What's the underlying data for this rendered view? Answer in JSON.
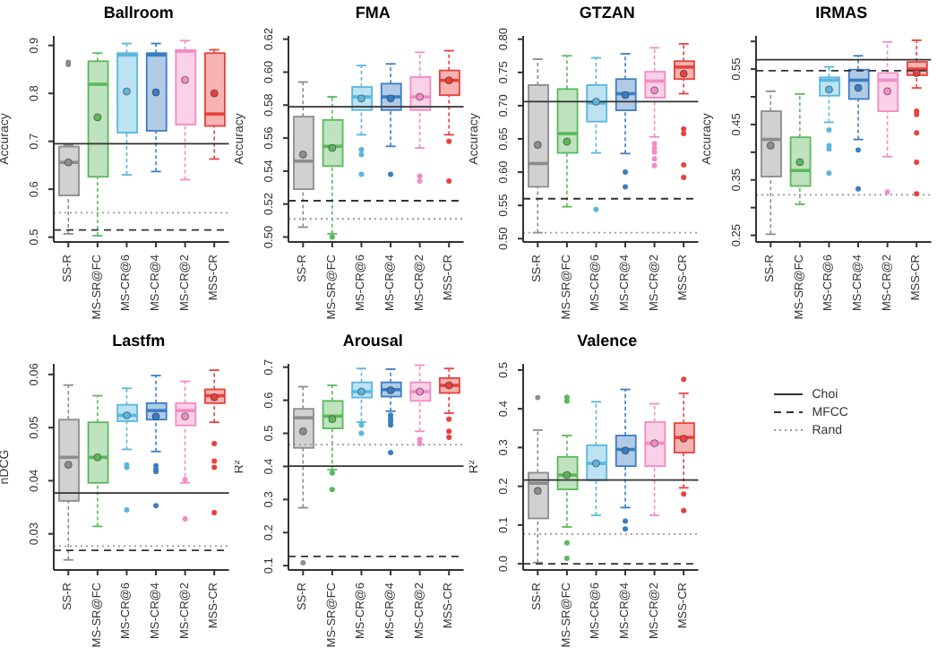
{
  "chart_data": [
    {
      "type": "box",
      "title": "Ballroom",
      "ylabel": "Accuracy",
      "categories": [
        "SS-R",
        "MS-SR@FC",
        "MS-CR@6",
        "MS-CR@4",
        "MS-CR@2",
        "MSS-CR"
      ],
      "colors": [
        "#8c8c8c",
        "#5cb85c",
        "#5bb6de",
        "#3b7dc4",
        "#f28cc4",
        "#e8413c"
      ],
      "ylim": [
        0.49,
        0.92
      ],
      "yticks": [
        0.5,
        0.6,
        0.7,
        0.8,
        0.9
      ],
      "ref_lines": [
        {
          "axis": "y",
          "value": 0.695,
          "line_style": "solid",
          "color": "#333333"
        },
        {
          "axis": "y",
          "value": 0.515,
          "line_style": "dashed",
          "color": "#333333"
        },
        {
          "axis": "y",
          "value": 0.551,
          "line_style": "dotted",
          "color": "#999999"
        }
      ],
      "boxes": [
        {
          "low": 0.507,
          "q1": 0.587,
          "median": 0.656,
          "q3": 0.689,
          "high": 0.692,
          "mean": 0.656,
          "outliers": [
            0.86,
            0.865
          ]
        },
        {
          "low": 0.503,
          "q1": 0.626,
          "median": 0.819,
          "q3": 0.867,
          "high": 0.884,
          "mean": 0.75
        },
        {
          "low": 0.63,
          "q1": 0.718,
          "median": 0.88,
          "q3": 0.884,
          "high": 0.904,
          "mean": 0.804
        },
        {
          "low": 0.637,
          "q1": 0.722,
          "median": 0.88,
          "q3": 0.884,
          "high": 0.904,
          "mean": 0.802
        },
        {
          "low": 0.62,
          "q1": 0.735,
          "median": 0.888,
          "q3": 0.89,
          "high": 0.91,
          "mean": 0.828
        },
        {
          "low": 0.663,
          "q1": 0.732,
          "median": 0.757,
          "q3": 0.884,
          "high": 0.891,
          "mean": 0.8
        }
      ]
    },
    {
      "type": "box",
      "title": "FMA",
      "ylabel": "Accuracy",
      "categories": [
        "SS-R",
        "MS-SR@FC",
        "MS-CR@6",
        "MS-CR@4",
        "MS-CR@2",
        "MSS-CR"
      ],
      "colors": [
        "#8c8c8c",
        "#5cb85c",
        "#5bb6de",
        "#3b7dc4",
        "#f28cc4",
        "#e8413c"
      ],
      "ylim": [
        0.497,
        0.622
      ],
      "yticks": [
        {
          "value": 0.5,
          "label": "0.50"
        },
        0.52,
        0.54,
        0.56,
        0.58,
        {
          "value": 0.6,
          "label": "0.60"
        },
        0.62
      ],
      "ref_lines": [
        {
          "axis": "y",
          "value": 0.579,
          "line_style": "solid",
          "color": "#333333"
        },
        {
          "axis": "y",
          "value": 0.522,
          "line_style": "dashed",
          "color": "#333333"
        },
        {
          "axis": "y",
          "value": 0.511,
          "line_style": "dotted",
          "color": "#999999"
        }
      ],
      "boxes": [
        {
          "low": 0.506,
          "q1": 0.529,
          "median": 0.546,
          "q3": 0.573,
          "high": 0.594,
          "mean": 0.55
        },
        {
          "low": 0.502,
          "q1": 0.543,
          "median": 0.555,
          "q3": 0.571,
          "high": 0.585,
          "mean": 0.554,
          "outliers": [
            0.5
          ]
        },
        {
          "low": 0.562,
          "q1": 0.577,
          "median": 0.585,
          "q3": 0.591,
          "high": 0.604,
          "mean": 0.584,
          "outliers": [
            0.553,
            0.55,
            0.538
          ]
        },
        {
          "low": 0.555,
          "q1": 0.577,
          "median": 0.585,
          "q3": 0.593,
          "high": 0.605,
          "mean": 0.584,
          "outliers": [
            0.538
          ]
        },
        {
          "low": 0.554,
          "q1": 0.577,
          "median": 0.585,
          "q3": 0.597,
          "high": 0.612,
          "mean": 0.585,
          "outliers": [
            0.537,
            0.534
          ]
        },
        {
          "low": 0.562,
          "q1": 0.586,
          "median": 0.595,
          "q3": 0.601,
          "high": 0.613,
          "mean": 0.595,
          "outliers": [
            0.558,
            0.534
          ]
        }
      ]
    },
    {
      "type": "box",
      "title": "GTZAN",
      "ylabel": "Accuracy",
      "categories": [
        "SS-R",
        "MS-SR@FC",
        "MS-CR@6",
        "MS-CR@4",
        "MS-CR@2",
        "MSS-CR"
      ],
      "colors": [
        "#8c8c8c",
        "#5cb85c",
        "#5bb6de",
        "#3b7dc4",
        "#f28cc4",
        "#e8413c"
      ],
      "ylim": [
        0.495,
        0.805
      ],
      "yticks": [
        {
          "value": 0.5,
          "label": "0.50"
        },
        0.55,
        {
          "value": 0.6,
          "label": "0.60"
        },
        0.65,
        {
          "value": 0.7,
          "label": "0.70"
        },
        0.75,
        {
          "value": 0.8,
          "label": "0.80"
        }
      ],
      "ref_lines": [
        {
          "axis": "y",
          "value": 0.706,
          "line_style": "solid",
          "color": "#333333"
        },
        {
          "axis": "y",
          "value": 0.56,
          "line_style": "dashed",
          "color": "#333333"
        },
        {
          "axis": "y",
          "value": 0.509,
          "line_style": "dotted",
          "color": "#999999"
        }
      ],
      "boxes": [
        {
          "low": 0.509,
          "q1": 0.578,
          "median": 0.613,
          "q3": 0.731,
          "high": 0.77,
          "mean": 0.641
        },
        {
          "low": 0.548,
          "q1": 0.629,
          "median": 0.658,
          "q3": 0.725,
          "high": 0.775,
          "mean": 0.646
        },
        {
          "low": 0.629,
          "q1": 0.676,
          "median": 0.704,
          "q3": 0.731,
          "high": 0.772,
          "mean": 0.706,
          "outliers": [
            0.544
          ]
        },
        {
          "low": 0.628,
          "q1": 0.693,
          "median": 0.718,
          "q3": 0.74,
          "high": 0.778,
          "mean": 0.716,
          "outliers": [
            0.6,
            0.578
          ]
        },
        {
          "low": 0.653,
          "q1": 0.712,
          "median": 0.737,
          "q3": 0.751,
          "high": 0.787,
          "mean": 0.723,
          "outliers": [
            0.643,
            0.636,
            0.63,
            0.62,
            0.61
          ]
        },
        {
          "low": 0.718,
          "q1": 0.74,
          "median": 0.758,
          "q3": 0.767,
          "high": 0.793,
          "mean": 0.748,
          "outliers": [
            0.665,
            0.658,
            0.611,
            0.592
          ]
        }
      ]
    },
    {
      "type": "box",
      "title": "IRMAS",
      "ylabel": "Accuracy",
      "categories": [
        "SS-R",
        "MS-SR@FC",
        "MS-CR@6",
        "MS-CR@4",
        "MS-CR@2",
        "MSS-CR"
      ],
      "colors": [
        "#8c8c8c",
        "#5cb85c",
        "#5bb6de",
        "#3b7dc4",
        "#f28cc4",
        "#e8413c"
      ],
      "ylim": [
        0.238,
        0.61
      ],
      "yticks": [
        0.25,
        {
          "value": 0.3,
          "label": null
        },
        0.35,
        {
          "value": 0.4,
          "label": null
        },
        0.45,
        {
          "value": 0.5,
          "label": null
        },
        0.55,
        {
          "value": 0.6,
          "label": null
        }
      ],
      "ref_lines": [
        {
          "axis": "y",
          "value": 0.567,
          "line_style": "solid",
          "color": "#333333"
        },
        {
          "axis": "y",
          "value": 0.547,
          "line_style": "dashed",
          "color": "#333333"
        },
        {
          "axis": "y",
          "value": 0.323,
          "line_style": "dotted",
          "color": "#999999"
        }
      ],
      "boxes": [
        {
          "low": 0.252,
          "q1": 0.356,
          "median": 0.423,
          "q3": 0.474,
          "high": 0.51,
          "mean": 0.412
        },
        {
          "low": 0.306,
          "q1": 0.339,
          "median": 0.367,
          "q3": 0.427,
          "high": 0.505,
          "mean": 0.382
        },
        {
          "low": 0.454,
          "q1": 0.502,
          "median": 0.53,
          "q3": 0.535,
          "high": 0.554,
          "mean": 0.513,
          "outliers": [
            0.44,
            0.412,
            0.406,
            0.362
          ]
        },
        {
          "low": 0.423,
          "q1": 0.496,
          "median": 0.53,
          "q3": 0.549,
          "high": 0.574,
          "mean": 0.516,
          "outliers": [
            0.404,
            0.334
          ]
        },
        {
          "low": 0.392,
          "q1": 0.474,
          "median": 0.53,
          "q3": 0.543,
          "high": 0.599,
          "mean": 0.51,
          "outliers": [
            0.328
          ]
        },
        {
          "low": 0.516,
          "q1": 0.539,
          "median": 0.55,
          "q3": 0.563,
          "high": 0.602,
          "mean": 0.543,
          "outliers": [
            0.474,
            0.468,
            0.435,
            0.382,
            0.325
          ]
        }
      ]
    },
    {
      "type": "box",
      "title": "Lastfm",
      "ylabel": "nDCG",
      "categories": [
        "SS-R",
        "MS-SR@FC",
        "MS-CR@6",
        "MS-CR@4",
        "MS-CR@2",
        "MSS-CR"
      ],
      "colors": [
        "#8c8c8c",
        "#5cb85c",
        "#5bb6de",
        "#3b7dc4",
        "#f28cc4",
        "#e8413c"
      ],
      "ylim": [
        0.0232,
        0.062
      ],
      "yticks": [
        0.03,
        0.04,
        0.05,
        0.06
      ],
      "ref_lines": [
        {
          "axis": "y",
          "value": 0.0377,
          "line_style": "solid",
          "color": "#333333"
        },
        {
          "axis": "y",
          "value": 0.0269,
          "line_style": "dashed",
          "color": "#333333"
        },
        {
          "axis": "y",
          "value": 0.0277,
          "line_style": "dotted",
          "color": "#999999"
        }
      ],
      "boxes": [
        {
          "low": 0.0251,
          "q1": 0.0362,
          "median": 0.0444,
          "q3": 0.0515,
          "high": 0.058,
          "mean": 0.043
        },
        {
          "low": 0.0314,
          "q1": 0.0396,
          "median": 0.0444,
          "q3": 0.051,
          "high": 0.056,
          "mean": 0.0444
        },
        {
          "low": 0.0459,
          "q1": 0.0512,
          "median": 0.0523,
          "q3": 0.0543,
          "high": 0.0574,
          "mean": 0.0523,
          "outliers": [
            0.043,
            0.0425,
            0.0345
          ]
        },
        {
          "low": 0.0455,
          "q1": 0.0515,
          "median": 0.0532,
          "q3": 0.0546,
          "high": 0.0598,
          "mean": 0.0521,
          "outliers": [
            0.0428,
            0.0421,
            0.0417,
            0.0353
          ]
        },
        {
          "low": 0.0396,
          "q1": 0.0504,
          "median": 0.0532,
          "q3": 0.0546,
          "high": 0.0587,
          "mean": 0.0521,
          "outliers": [
            0.0402,
            0.0328
          ]
        },
        {
          "low": 0.051,
          "q1": 0.0546,
          "median": 0.056,
          "q3": 0.0572,
          "high": 0.0608,
          "mean": 0.0557,
          "outliers": [
            0.047,
            0.0437,
            0.0425,
            0.034
          ]
        }
      ]
    },
    {
      "type": "box",
      "title": "Arousal",
      "ylabel": "R²",
      "categories": [
        "SS-R",
        "MS-SR@FC",
        "MS-CR@6",
        "MS-CR@4",
        "MS-CR@2",
        "MSS-CR"
      ],
      "colors": [
        "#8c8c8c",
        "#5cb85c",
        "#5bb6de",
        "#3b7dc4",
        "#f28cc4",
        "#e8413c"
      ],
      "ylim": [
        0.087,
        0.71
      ],
      "yticks": [
        0.1,
        0.2,
        0.3,
        0.4,
        0.5,
        0.6,
        0.7
      ],
      "ref_lines": [
        {
          "axis": "y",
          "value": 0.401,
          "line_style": "solid",
          "color": "#333333"
        },
        {
          "axis": "y",
          "value": 0.128,
          "line_style": "dashed",
          "color": "#333333"
        },
        {
          "axis": "y",
          "value": 0.466,
          "line_style": "dotted",
          "color": "#999999"
        }
      ],
      "boxes": [
        {
          "low": 0.275,
          "q1": 0.456,
          "median": 0.547,
          "q3": 0.574,
          "high": 0.641,
          "mean": 0.506,
          "outliers": [
            0.109
          ]
        },
        {
          "low": 0.39,
          "q1": 0.515,
          "median": 0.552,
          "q3": 0.598,
          "high": 0.645,
          "mean": 0.543,
          "outliers": [
            0.38,
            0.33
          ]
        },
        {
          "low": 0.534,
          "q1": 0.608,
          "median": 0.626,
          "q3": 0.654,
          "high": 0.696,
          "mean": 0.626,
          "outliers": [
            0.525,
            0.5
          ]
        },
        {
          "low": 0.567,
          "q1": 0.611,
          "median": 0.632,
          "q3": 0.654,
          "high": 0.694,
          "mean": 0.63,
          "outliers": [
            0.555,
            0.545,
            0.535,
            0.525,
            0.442
          ]
        },
        {
          "low": 0.506,
          "q1": 0.598,
          "median": 0.626,
          "q3": 0.654,
          "high": 0.706,
          "mean": 0.626,
          "outliers": [
            0.482,
            0.469
          ]
        },
        {
          "low": 0.561,
          "q1": 0.622,
          "median": 0.645,
          "q3": 0.667,
          "high": 0.696,
          "mean": 0.645,
          "outliers": [
            0.543,
            0.506,
            0.488
          ]
        }
      ]
    },
    {
      "type": "box",
      "title": "Valence",
      "ylabel": "R²",
      "categories": [
        "SS-R",
        "MS-SR@FC",
        "MS-CR@6",
        "MS-CR@4",
        "MS-CR@2",
        "MSS-CR"
      ],
      "colors": [
        "#8c8c8c",
        "#5cb85c",
        "#5bb6de",
        "#3b7dc4",
        "#f28cc4",
        "#e8413c"
      ],
      "ylim": [
        -0.016,
        0.516
      ],
      "yticks": [
        {
          "value": 0,
          "label": "0.0"
        },
        0.1,
        0.2,
        0.3,
        0.4,
        0.5
      ],
      "ref_lines": [
        {
          "axis": "y",
          "value": 0.216,
          "line_style": "solid",
          "color": "#333333"
        },
        {
          "axis": "y",
          "value": 0.0,
          "line_style": "dashed",
          "color": "#333333"
        },
        {
          "axis": "y",
          "value": 0.077,
          "line_style": "dotted",
          "color": "#999999"
        }
      ],
      "boxes": [
        {
          "low": 0.003,
          "q1": 0.117,
          "median": 0.208,
          "q3": 0.235,
          "high": 0.345,
          "mean": 0.188,
          "outliers": [
            0.429
          ]
        },
        {
          "low": 0.095,
          "q1": 0.192,
          "median": 0.229,
          "q3": 0.276,
          "high": 0.331,
          "mean": 0.229,
          "outliers": [
            0.43,
            0.42,
            0.054,
            0.014
          ]
        },
        {
          "low": 0.125,
          "q1": 0.216,
          "median": 0.259,
          "q3": 0.306,
          "high": 0.418,
          "mean": 0.259
        },
        {
          "low": 0.145,
          "q1": 0.252,
          "median": 0.295,
          "q3": 0.331,
          "high": 0.45,
          "mean": 0.292,
          "outliers": [
            0.11,
            0.09
          ]
        },
        {
          "low": 0.125,
          "q1": 0.252,
          "median": 0.311,
          "q3": 0.366,
          "high": 0.413,
          "mean": 0.311
        },
        {
          "low": 0.196,
          "q1": 0.287,
          "median": 0.326,
          "q3": 0.363,
          "high": 0.44,
          "mean": 0.323,
          "outliers": [
            0.476,
            0.18,
            0.137
          ]
        }
      ]
    },
    {
      "type": "other",
      "annotations": [
        "Choi",
        "MFCC",
        "Rand"
      ]
    }
  ]
}
